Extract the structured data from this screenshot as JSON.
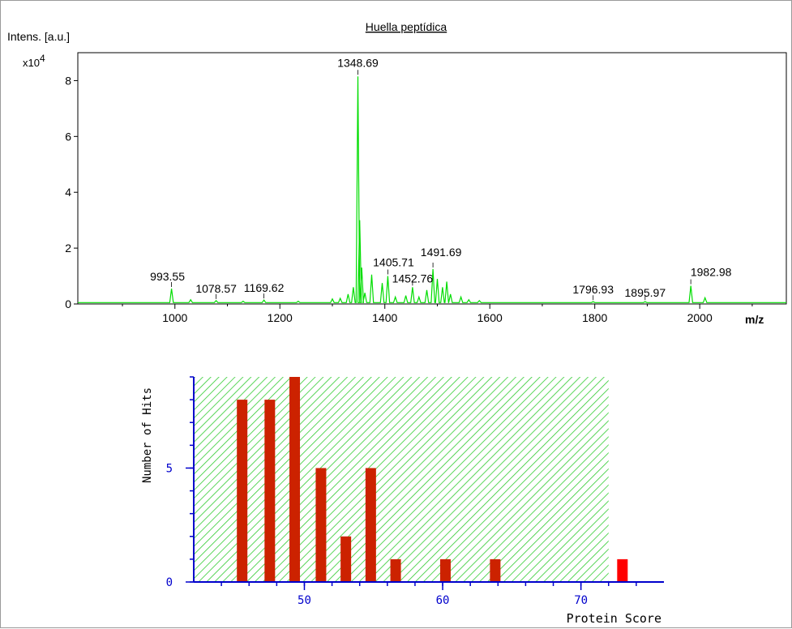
{
  "chart_data": [
    {
      "type": "line",
      "title": "Huella peptídica",
      "ylabel": "Intens. [a.u.]",
      "y_multiplier": "x10",
      "y_multiplier_exp": "4",
      "xlabel": "m/z",
      "xlim": [
        815,
        2165
      ],
      "ylim": [
        0,
        9.0
      ],
      "x_ticks": [
        1000,
        1200,
        1400,
        1600,
        1800,
        2000
      ],
      "y_ticks": [
        0,
        2,
        4,
        6,
        8
      ],
      "line_color": "#00dd00",
      "peaks": [
        {
          "x": 993.55,
          "y": 0.55
        },
        {
          "x": 1030,
          "y": 0.15
        },
        {
          "x": 1078.57,
          "y": 0.12
        },
        {
          "x": 1130,
          "y": 0.1
        },
        {
          "x": 1169.62,
          "y": 0.14
        },
        {
          "x": 1235,
          "y": 0.1
        },
        {
          "x": 1300,
          "y": 0.18
        },
        {
          "x": 1315,
          "y": 0.2
        },
        {
          "x": 1330,
          "y": 0.35
        },
        {
          "x": 1340,
          "y": 0.6
        },
        {
          "x": 1348.69,
          "y": 8.15
        },
        {
          "x": 1352,
          "y": 3.0
        },
        {
          "x": 1356,
          "y": 1.3
        },
        {
          "x": 1362,
          "y": 0.4
        },
        {
          "x": 1375,
          "y": 1.05
        },
        {
          "x": 1395,
          "y": 0.75
        },
        {
          "x": 1405.71,
          "y": 1.0
        },
        {
          "x": 1420,
          "y": 0.25
        },
        {
          "x": 1440,
          "y": 0.3
        },
        {
          "x": 1452.76,
          "y": 0.6
        },
        {
          "x": 1465,
          "y": 0.25
        },
        {
          "x": 1480,
          "y": 0.5
        },
        {
          "x": 1491.69,
          "y": 1.25
        },
        {
          "x": 1500,
          "y": 0.9
        },
        {
          "x": 1510,
          "y": 0.6
        },
        {
          "x": 1518,
          "y": 0.8
        },
        {
          "x": 1525,
          "y": 0.35
        },
        {
          "x": 1545,
          "y": 0.25
        },
        {
          "x": 1560,
          "y": 0.15
        },
        {
          "x": 1580,
          "y": 0.12
        },
        {
          "x": 1700,
          "y": 0.05
        },
        {
          "x": 1796.93,
          "y": 0.08
        },
        {
          "x": 1895.97,
          "y": 0.08
        },
        {
          "x": 1940,
          "y": 0.05
        },
        {
          "x": 1982.98,
          "y": 0.65
        },
        {
          "x": 2010,
          "y": 0.22
        }
      ],
      "peak_labels": [
        {
          "text": "993.55",
          "x": 993.55,
          "y": 0.55
        },
        {
          "text": "1078.57",
          "x": 1078.57,
          "y": 0.12
        },
        {
          "text": "1169.62",
          "x": 1169.62,
          "y": 0.14
        },
        {
          "text": "1348.69",
          "x": 1348.69,
          "y": 8.15
        },
        {
          "text": "1405.71",
          "x": 1405.71,
          "y": 1.0
        },
        {
          "text": "1452.76",
          "x": 1452.76,
          "y": 0.6
        },
        {
          "text": "1491.69",
          "x": 1491.69,
          "y": 1.25
        },
        {
          "text": "1796.93",
          "x": 1796.93,
          "y": 0.08
        },
        {
          "text": "1895.97",
          "x": 1895.97,
          "y": 0.08
        },
        {
          "text": "1982.98",
          "x": 1982.98,
          "y": 0.65
        }
      ]
    },
    {
      "type": "bar",
      "xlabel": "Protein Score",
      "ylabel": "Number of Hits",
      "xlim": [
        42,
        76
      ],
      "ylim": [
        0,
        9
      ],
      "x_ticks": [
        50,
        60,
        70
      ],
      "y_ticks": [
        0,
        5
      ],
      "threshold_score": 72,
      "shade_color": "#33cc33",
      "bar_color": "#cc2200",
      "highlight_color": "#ff0000",
      "axis_color": "#0000cc",
      "bars": [
        {
          "x": 45.5,
          "y": 8
        },
        {
          "x": 47.5,
          "y": 8
        },
        {
          "x": 49.3,
          "y": 9
        },
        {
          "x": 51.2,
          "y": 5
        },
        {
          "x": 53.0,
          "y": 2
        },
        {
          "x": 54.8,
          "y": 5
        },
        {
          "x": 56.6,
          "y": 1
        },
        {
          "x": 60.2,
          "y": 1
        },
        {
          "x": 63.8,
          "y": 1
        },
        {
          "x": 73.0,
          "y": 1,
          "highlight": true
        }
      ]
    }
  ]
}
